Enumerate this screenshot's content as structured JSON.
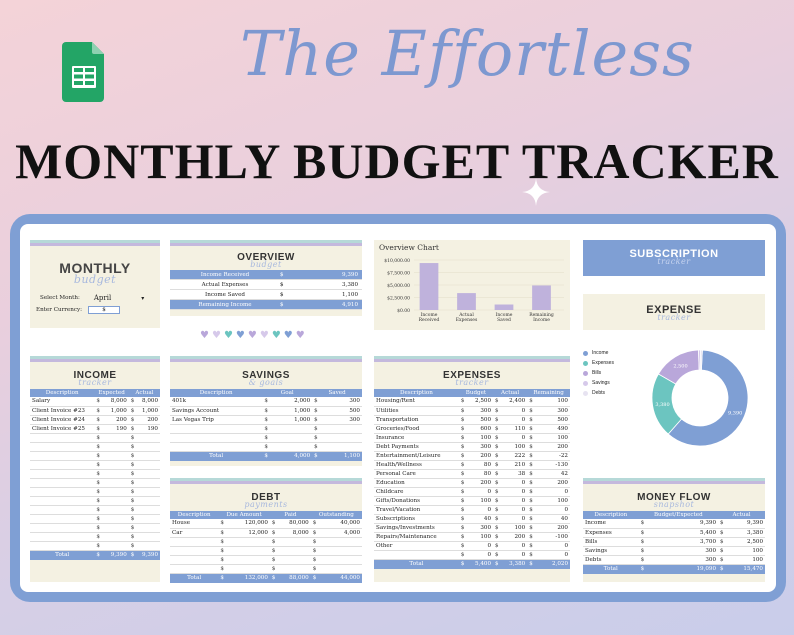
{
  "hero": {
    "tagline": "The Effortless",
    "title": "MONTHLY BUDGET TRACKER"
  },
  "monthly": {
    "title": "MONTHLY",
    "script": "budget",
    "select_month_label": "Select Month:",
    "month": "April",
    "currency_label": "Enter Currency:",
    "currency": "$"
  },
  "overview": {
    "title": "OVERVIEW",
    "script": "budget",
    "rows": [
      {
        "label": "Income Received",
        "cur": "$",
        "value": "9,390"
      },
      {
        "label": "Actual Expenses",
        "cur": "$",
        "value": "3,380"
      },
      {
        "label": "Income Saved",
        "cur": "$",
        "value": "1,100"
      },
      {
        "label": "Remaining Income",
        "cur": "$",
        "value": "4,910"
      }
    ]
  },
  "chart_data": [
    {
      "type": "bar",
      "title": "Overview Chart",
      "categories": [
        "Income Received",
        "Actual Expenses",
        "Income Saved",
        "Remaining Income"
      ],
      "values": [
        9390,
        3380,
        1100,
        4910
      ],
      "yticks": [
        "$0.00",
        "$2,500.00",
        "$5,000.00",
        "$7,500.00",
        "$10,000.00"
      ],
      "ylim": [
        0,
        10000
      ],
      "color": "#bfb2dc"
    },
    {
      "type": "pie",
      "title": "EXPENSE",
      "script": "tracker",
      "categories": [
        "Income",
        "Expenses",
        "Bills",
        "Savings",
        "Debts"
      ],
      "values": [
        9390,
        3380,
        2500,
        100,
        100
      ],
      "labels": [
        "9,390",
        "3,380",
        "2,500",
        "",
        ""
      ],
      "colors": [
        "#7f9fd4",
        "#6cc5c0",
        "#b9a7da",
        "#d6c9ea",
        "#e7e3f1"
      ]
    }
  ],
  "subscription": {
    "title": "SUBSCRIPTION",
    "script": "tracker"
  },
  "income": {
    "title": "INCOME",
    "script": "tracker",
    "headers": [
      "Description",
      "Expected",
      "Actual"
    ],
    "rows": [
      [
        "Salary",
        "$",
        "8,000",
        "$",
        "8,000"
      ],
      [
        "Client Invoice #23",
        "$",
        "1,000",
        "$",
        "1,000"
      ],
      [
        "Client Invoice #24",
        "$",
        "200",
        "$",
        "200"
      ],
      [
        "Client Invoice #25",
        "$",
        "190",
        "$",
        "190"
      ],
      [
        "",
        "$",
        "",
        "$",
        ""
      ],
      [
        "",
        "$",
        "",
        "$",
        ""
      ],
      [
        "",
        "$",
        "",
        "$",
        ""
      ],
      [
        "",
        "$",
        "",
        "$",
        ""
      ],
      [
        "",
        "$",
        "",
        "$",
        ""
      ],
      [
        "",
        "$",
        "",
        "$",
        ""
      ],
      [
        "",
        "$",
        "",
        "$",
        ""
      ],
      [
        "",
        "$",
        "",
        "$",
        ""
      ],
      [
        "",
        "$",
        "",
        "$",
        ""
      ],
      [
        "",
        "$",
        "",
        "$",
        ""
      ],
      [
        "",
        "$",
        "",
        "$",
        ""
      ],
      [
        "",
        "$",
        "",
        "$",
        ""
      ],
      [
        "",
        "$",
        "",
        "$",
        ""
      ]
    ],
    "total": [
      "Total",
      "$",
      "9,390",
      "$",
      "9,390"
    ]
  },
  "savings": {
    "title": "SAVINGS",
    "script": "& goals",
    "headers": [
      "Description",
      "Goal",
      "Saved"
    ],
    "rows": [
      [
        "401k",
        "$",
        "2,000",
        "$",
        "300"
      ],
      [
        "Savings Account",
        "$",
        "1,000",
        "$",
        "500"
      ],
      [
        "Las Vegas Trip",
        "$",
        "1,000",
        "$",
        "300"
      ],
      [
        "",
        "$",
        "",
        "$",
        ""
      ],
      [
        "",
        "$",
        "",
        "$",
        ""
      ],
      [
        "",
        "$",
        "",
        "$",
        ""
      ]
    ],
    "total": [
      "Total",
      "$",
      "4,000",
      "$",
      "1,100"
    ]
  },
  "debt": {
    "title": "DEBT",
    "script": "payments",
    "headers": [
      "Description",
      "Due Amount",
      "Paid",
      "Outstanding"
    ],
    "rows": [
      [
        "House",
        "$",
        "120,000",
        "$",
        "80,000",
        "$",
        "40,000"
      ],
      [
        "Car",
        "$",
        "12,000",
        "$",
        "8,000",
        "$",
        "4,000"
      ],
      [
        "",
        "$",
        "",
        "$",
        "",
        "$",
        ""
      ],
      [
        "",
        "$",
        "",
        "$",
        "",
        "$",
        ""
      ],
      [
        "",
        "$",
        "",
        "$",
        "",
        "$",
        ""
      ],
      [
        "",
        "$",
        "",
        "$",
        "",
        "$",
        ""
      ]
    ],
    "total": [
      "Total",
      "$",
      "132,000",
      "$",
      "88,000",
      "$",
      "44,000"
    ]
  },
  "expenses": {
    "title": "EXPENSES",
    "script": "tracker",
    "headers": [
      "Description",
      "Budget",
      "Actual",
      "Remaining"
    ],
    "rows": [
      [
        "Housing/Rent",
        "$",
        "2,500",
        "$",
        "2,400",
        "$",
        "100"
      ],
      [
        "Utilities",
        "$",
        "300",
        "$",
        "0",
        "$",
        "300"
      ],
      [
        "Transportation",
        "$",
        "500",
        "$",
        "0",
        "$",
        "500"
      ],
      [
        "Groceries/Food",
        "$",
        "600",
        "$",
        "110",
        "$",
        "490"
      ],
      [
        "Insurance",
        "$",
        "100",
        "$",
        "0",
        "$",
        "100"
      ],
      [
        "Debt Payments",
        "$",
        "300",
        "$",
        "100",
        "$",
        "200"
      ],
      [
        "Entertainment/Leisure",
        "$",
        "200",
        "$",
        "222",
        "$",
        "-22"
      ],
      [
        "Health/Wellness",
        "$",
        "80",
        "$",
        "210",
        "$",
        "-130"
      ],
      [
        "Personal Care",
        "$",
        "80",
        "$",
        "38",
        "$",
        "42"
      ],
      [
        "Education",
        "$",
        "200",
        "$",
        "0",
        "$",
        "200"
      ],
      [
        "Childcare",
        "$",
        "0",
        "$",
        "0",
        "$",
        "0"
      ],
      [
        "Gifts/Donations",
        "$",
        "100",
        "$",
        "0",
        "$",
        "100"
      ],
      [
        "Travel/Vacation",
        "$",
        "0",
        "$",
        "0",
        "$",
        "0"
      ],
      [
        "Subscriptions",
        "$",
        "40",
        "$",
        "0",
        "$",
        "40"
      ],
      [
        "Savings/Investments",
        "$",
        "300",
        "$",
        "100",
        "$",
        "200"
      ],
      [
        "Repairs/Maintenance",
        "$",
        "100",
        "$",
        "200",
        "$",
        "-100"
      ],
      [
        "Other",
        "$",
        "0",
        "$",
        "0",
        "$",
        "0"
      ],
      [
        "",
        "$",
        "0",
        "$",
        "0",
        "$",
        "0"
      ]
    ],
    "total": [
      "Total",
      "$",
      "5,400",
      "$",
      "3,380",
      "$",
      "2,020"
    ]
  },
  "moneyflow": {
    "title": "MONEY FLOW",
    "script": "snapshot",
    "headers": [
      "Description",
      "Budget/Expected",
      "Actual"
    ],
    "rows": [
      [
        "Income",
        "$",
        "9,390",
        "$",
        "9,390"
      ],
      [
        "Expenses",
        "$",
        "5,400",
        "$",
        "3,380"
      ],
      [
        "Bills",
        "$",
        "3,700",
        "$",
        "2,500"
      ],
      [
        "Savings",
        "$",
        "300",
        "$",
        "100"
      ],
      [
        "Debts",
        "$",
        "300",
        "$",
        "100"
      ]
    ],
    "total": [
      "Total",
      "$",
      "19,090",
      "$",
      "15,470"
    ]
  },
  "colors": {
    "accent": "#7f9fd4",
    "teal": "#6cc5c0",
    "lavender": "#b9a7da",
    "cream": "#f4f1e2"
  }
}
